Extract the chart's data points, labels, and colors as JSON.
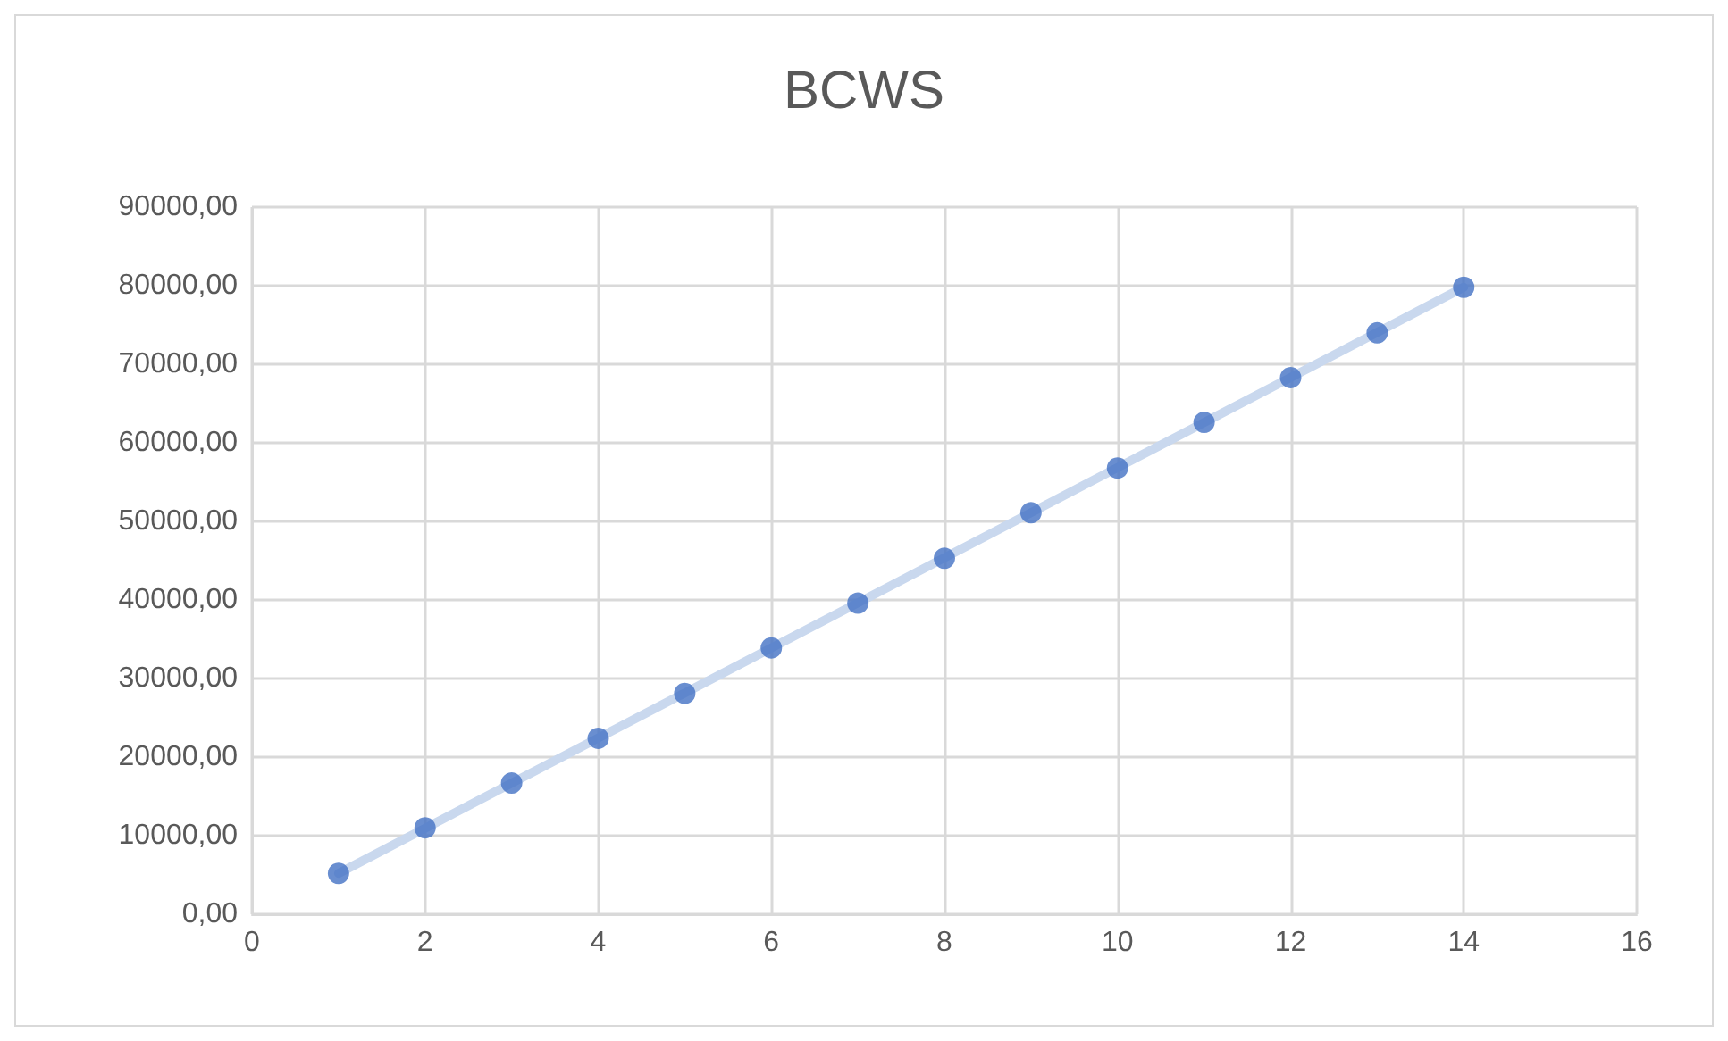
{
  "chart_data": {
    "type": "scatter",
    "title": "BCWS",
    "x": [
      1,
      2,
      3,
      4,
      5,
      6,
      7,
      8,
      9,
      10,
      11,
      12,
      13,
      14
    ],
    "series": [
      {
        "type": "line",
        "color": "#c9d8ee",
        "marker": "none",
        "line_style": "solid",
        "x": [
          1,
          14
        ],
        "values": [
          5200,
          79800
        ]
      },
      {
        "color": "#4472c4",
        "marker": "circle",
        "values": [
          5200,
          11000,
          16700,
          22400,
          28100,
          33900,
          39600,
          45300,
          51100,
          56800,
          62600,
          68300,
          74000,
          79800
        ]
      }
    ],
    "xlim": [
      0,
      16
    ],
    "xticks": [
      0,
      2,
      4,
      6,
      8,
      10,
      12,
      14,
      16
    ],
    "ylim": [
      0,
      90000
    ],
    "yticks": [
      {
        "value": 0,
        "label": "0,00"
      },
      {
        "value": 10000,
        "label": "10000,00"
      },
      {
        "value": 20000,
        "label": "20000,00"
      },
      {
        "value": 30000,
        "label": "30000,00"
      },
      {
        "value": 40000,
        "label": "40000,00"
      },
      {
        "value": 50000,
        "label": "50000,00"
      },
      {
        "value": 60000,
        "label": "60000,00"
      },
      {
        "value": 70000,
        "label": "70000,00"
      },
      {
        "value": 80000,
        "label": "80000,00"
      },
      {
        "value": 90000,
        "label": "90000,00"
      }
    ],
    "grid": true
  }
}
